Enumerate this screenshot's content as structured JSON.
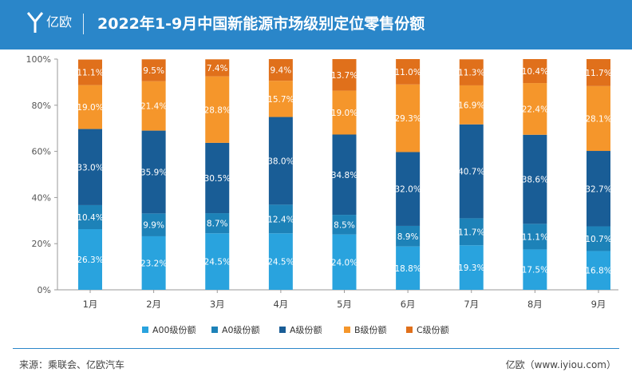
{
  "header": {
    "logo_text": "亿欧",
    "title": "2022年1-9月中国新能源市场级别定位零售份额"
  },
  "colors": {
    "header_bg": "#2a86c9",
    "A00": "#29a3de",
    "A0": "#1d82b8",
    "A": "#195d96",
    "B": "#f5962b",
    "C": "#e0701b"
  },
  "chart_data": {
    "type": "bar",
    "stacked": true,
    "categories": [
      "1月",
      "2月",
      "3月",
      "4月",
      "5月",
      "6月",
      "7月",
      "8月",
      "9月"
    ],
    "ylim": [
      0,
      100
    ],
    "yticks": [
      "0%",
      "20%",
      "40%",
      "60%",
      "80%",
      "100%"
    ],
    "grid": false,
    "legend": "bottom",
    "series": [
      {
        "name": "A00级份额",
        "color": "#29a3de",
        "values": [
          26.3,
          23.2,
          24.5,
          24.5,
          24.0,
          18.8,
          19.3,
          17.5,
          16.8
        ],
        "labels": [
          "26.3%",
          "23.2%",
          "24.5%",
          "24.5%",
          "24.0%",
          "18.8%",
          "19.3%",
          "17.5%",
          "16.8%"
        ]
      },
      {
        "name": "A0级份额",
        "color": "#1d82b8",
        "values": [
          10.4,
          9.9,
          8.7,
          12.4,
          8.5,
          8.9,
          11.7,
          11.1,
          10.7
        ],
        "labels": [
          "10.4%",
          "9.9%",
          "8.7%",
          "12.4%",
          "8.5%",
          "8.9%",
          "11.7%",
          "11.1%",
          "10.7%"
        ]
      },
      {
        "name": "A级份额",
        "color": "#195d96",
        "values": [
          33.0,
          35.9,
          30.5,
          38.0,
          34.8,
          32.0,
          40.7,
          38.6,
          32.7
        ],
        "labels": [
          "33.0%",
          "35.9%",
          "30.5%",
          "38.0%",
          "34.8%",
          "32.0%",
          "40.7%",
          "38.6%",
          "32.7%"
        ]
      },
      {
        "name": "B级份额",
        "color": "#f5962b",
        "values": [
          19.0,
          21.4,
          28.8,
          15.7,
          19.0,
          29.3,
          16.9,
          22.4,
          28.1
        ],
        "labels": [
          "19.0%",
          "21.4%",
          "28.8%",
          "15.7%",
          "19.0%",
          "29.3%",
          "16.9%",
          "22.4%",
          "28.1%"
        ]
      },
      {
        "name": "C级份额",
        "color": "#e0701b",
        "values": [
          11.1,
          9.5,
          7.4,
          9.4,
          13.7,
          11.0,
          11.3,
          10.4,
          11.7
        ],
        "labels": [
          "11.1%",
          "9.5%",
          "7.4%",
          "9.4%",
          "13.7%",
          "11.0%",
          "11.3%",
          "10.4%",
          "11.7%"
        ]
      }
    ]
  },
  "footer": {
    "source": "来源：乘联会、亿欧汽车",
    "credit": "亿欧（www.iyiou.com）"
  }
}
